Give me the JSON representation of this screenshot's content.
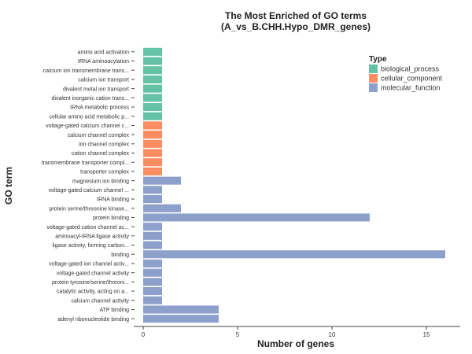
{
  "chart_data": {
    "type": "bar",
    "orientation": "horizontal",
    "title": "The Most Enriched of GO terms",
    "subtitle": "(A_vs_B.CHH.Hypo_DMR_genes)",
    "xlabel": "Number of genes",
    "ylabel": "GO term",
    "xlim": [
      0,
      16
    ],
    "xticks": [
      0,
      5,
      10,
      15
    ],
    "grid": false,
    "legend": {
      "title": "Type",
      "placement": "top-right",
      "entries": [
        {
          "label": "biological_process",
          "color": "#66c2a5"
        },
        {
          "label": "cellular_component",
          "color": "#fc8d62"
        },
        {
          "label": "molecular_function",
          "color": "#8da0cb"
        }
      ]
    },
    "categories": [
      "amino acid activation",
      "tRNA aminoacylation",
      "calcium ion transmembrane trans...",
      "calcium ion transport",
      "divalent metal ion transport",
      "divalent inorganic cation trans...",
      "tRNA metabolic process",
      "cellular amino acid metabolic p...",
      "voltage-gated calcium channel c...",
      "calcium channel complex",
      "ion channel complex",
      "cation channel complex",
      "transmembrane transporter compl...",
      "transporter complex",
      "magnesium ion binding",
      "voltage-gated calcium channel ...",
      "tRNA binding",
      "protein serine/threonine kinase...",
      "protein binding",
      "voltage-gated cation channel ac...",
      "aminoacyl-tRNA ligase activity",
      "ligase activity, forming carbon...",
      "binding",
      "voltage-gated ion channel activ...",
      "voltage-gated channel activity",
      "protein tyrosine/serine/threoni...",
      "catalytic activity, acting on a...",
      "calcium channel activity",
      "ATP binding",
      "adenyl ribonucleotide binding"
    ],
    "values": [
      1,
      1,
      1,
      1,
      1,
      1,
      1,
      1,
      1,
      1,
      1,
      1,
      1,
      1,
      2,
      1,
      1,
      2,
      12,
      1,
      1,
      1,
      16,
      1,
      1,
      1,
      1,
      1,
      4,
      4
    ],
    "types": [
      "biological_process",
      "biological_process",
      "biological_process",
      "biological_process",
      "biological_process",
      "biological_process",
      "biological_process",
      "biological_process",
      "cellular_component",
      "cellular_component",
      "cellular_component",
      "cellular_component",
      "cellular_component",
      "cellular_component",
      "molecular_function",
      "molecular_function",
      "molecular_function",
      "molecular_function",
      "molecular_function",
      "molecular_function",
      "molecular_function",
      "molecular_function",
      "molecular_function",
      "molecular_function",
      "molecular_function",
      "molecular_function",
      "molecular_function",
      "molecular_function",
      "molecular_function",
      "molecular_function"
    ]
  }
}
